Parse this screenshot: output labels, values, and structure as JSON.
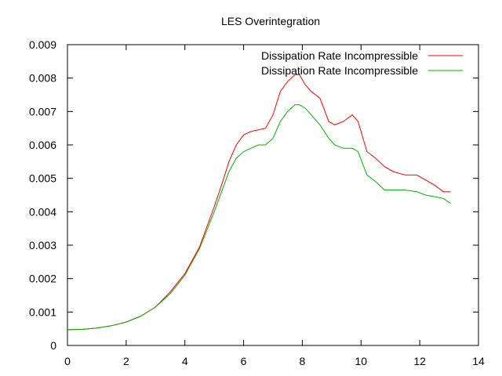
{
  "chart_data": {
    "type": "line",
    "title": "LES Overintegration",
    "xlabel": "",
    "ylabel": "",
    "xlim": [
      0,
      14
    ],
    "ylim": [
      0,
      0.009
    ],
    "grid": false,
    "legend_position": "top-right",
    "x_ticks": [
      "0",
      "2",
      "4",
      "6",
      "8",
      "10",
      "12",
      "14"
    ],
    "y_ticks": [
      "0",
      "0.001",
      "0.002",
      "0.003",
      "0.004",
      "0.005",
      "0.006",
      "0.007",
      "0.008",
      "0.009"
    ],
    "series": [
      {
        "name": "Dissipation Rate Incompressible",
        "color": "#ff0000",
        "x": [
          0,
          0.5,
          1,
          1.5,
          2,
          2.5,
          3,
          3.5,
          4,
          4.5,
          5,
          5.25,
          5.5,
          5.75,
          6,
          6.25,
          6.5,
          6.75,
          7,
          7.25,
          7.5,
          7.75,
          7.9,
          8.1,
          8.3,
          8.6,
          8.9,
          9.1,
          9.4,
          9.7,
          9.9,
          10.2,
          10.5,
          10.8,
          11.1,
          11.5,
          11.9,
          12.2,
          12.5,
          12.8,
          13.05
        ],
        "y": [
          0.00047,
          0.00048,
          0.00052,
          0.00059,
          0.0007,
          0.00088,
          0.00115,
          0.0016,
          0.00215,
          0.00295,
          0.00415,
          0.0048,
          0.0055,
          0.006,
          0.0063,
          0.0064,
          0.00645,
          0.0065,
          0.0069,
          0.0076,
          0.0079,
          0.0081,
          0.0081,
          0.0078,
          0.0076,
          0.0074,
          0.0067,
          0.0066,
          0.0067,
          0.0069,
          0.0067,
          0.0058,
          0.0056,
          0.00535,
          0.0052,
          0.0051,
          0.0051,
          0.00495,
          0.0048,
          0.0046,
          0.0046
        ]
      },
      {
        "name": "Dissipation Rate Incompressible",
        "color": "#00b000",
        "x": [
          0,
          0.5,
          1,
          1.5,
          2,
          2.5,
          3,
          3.5,
          4,
          4.5,
          5,
          5.25,
          5.5,
          5.75,
          6,
          6.25,
          6.5,
          6.75,
          7,
          7.25,
          7.5,
          7.75,
          7.9,
          8.1,
          8.3,
          8.6,
          8.9,
          9.1,
          9.4,
          9.7,
          9.9,
          10.2,
          10.5,
          10.8,
          11.1,
          11.5,
          11.9,
          12.2,
          12.5,
          12.8,
          13.05
        ],
        "y": [
          0.00047,
          0.00048,
          0.00052,
          0.00059,
          0.0007,
          0.00088,
          0.00115,
          0.00155,
          0.0021,
          0.0029,
          0.004,
          0.0046,
          0.0052,
          0.0056,
          0.0058,
          0.0059,
          0.006,
          0.006,
          0.0062,
          0.0067,
          0.007,
          0.0072,
          0.0072,
          0.0071,
          0.0069,
          0.0066,
          0.0062,
          0.006,
          0.0059,
          0.0059,
          0.0058,
          0.0051,
          0.0049,
          0.00465,
          0.00465,
          0.00465,
          0.0046,
          0.0045,
          0.00445,
          0.0044,
          0.00425
        ]
      }
    ]
  }
}
